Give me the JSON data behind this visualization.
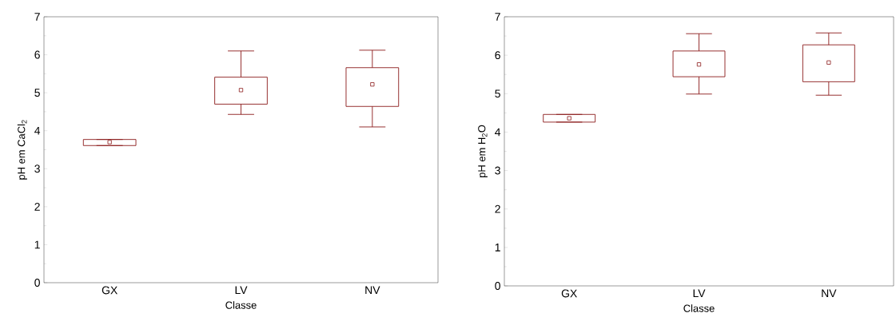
{
  "chart_data": [
    {
      "type": "box",
      "xlabel": "Classe",
      "ylabel": "pH em CaCl$_{2}$",
      "categories": [
        "GX",
        "LV",
        "NV"
      ],
      "color": "#8b1a1a",
      "boxes": [
        {
          "low": 3.61,
          "q1": 3.61,
          "median": 3.7,
          "q3": 3.77,
          "high": 3.77
        },
        {
          "low": 4.43,
          "q1": 4.7,
          "median": 5.07,
          "q3": 5.41,
          "high": 6.1
        },
        {
          "low": 4.1,
          "q1": 4.64,
          "median": 5.22,
          "q3": 5.66,
          "high": 6.12
        }
      ],
      "ylim": [
        0,
        7
      ],
      "yticks": [
        0,
        1,
        2,
        3,
        4,
        5,
        6,
        7
      ],
      "marker": "square"
    },
    {
      "type": "box",
      "xlabel": "Classe",
      "ylabel": "pH em H$_{2}$O",
      "categories": [
        "GX",
        "LV",
        "NV"
      ],
      "color": "#8b1a1a",
      "boxes": [
        {
          "low": 4.26,
          "q1": 4.26,
          "median": 4.36,
          "q3": 4.46,
          "high": 4.46
        },
        {
          "low": 4.99,
          "q1": 5.44,
          "median": 5.76,
          "q3": 6.11,
          "high": 6.56
        },
        {
          "low": 4.96,
          "q1": 5.31,
          "median": 5.81,
          "q3": 6.27,
          "high": 6.58
        }
      ],
      "ylim": [
        0,
        7
      ],
      "yticks": [
        0,
        1,
        2,
        3,
        4,
        5,
        6,
        7
      ],
      "marker": "square"
    }
  ]
}
